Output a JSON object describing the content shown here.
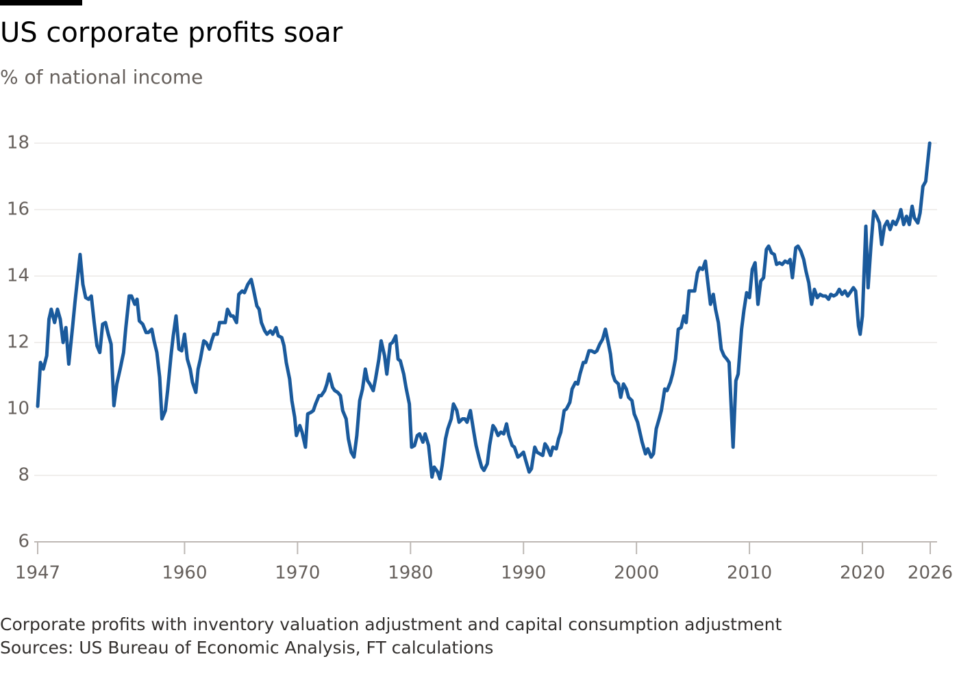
{
  "chart_data": {
    "type": "line",
    "title": "US corporate profits soar",
    "subtitle": "% of national income",
    "note": "Corporate profits with inventory valuation adjustment and capital consumption adjustment",
    "source": "Sources: US Bureau of Economic Analysis, FT calculations",
    "color": "#1a5a9c",
    "grid": true,
    "xlim": [
      1947,
      2026
    ],
    "xticks": [
      1947,
      1960,
      1970,
      1980,
      1990,
      2000,
      2010,
      2020,
      2026
    ],
    "ylim": [
      6,
      18
    ],
    "yticks": [
      6,
      8,
      10,
      12,
      14,
      16,
      18
    ],
    "x": [
      1947.0,
      1947.25,
      1947.5,
      1947.8,
      1948.0,
      1948.2,
      1948.5,
      1948.75,
      1949.0,
      1949.25,
      1949.5,
      1949.75,
      1950.1,
      1950.3,
      1950.75,
      1951.0,
      1951.25,
      1951.5,
      1951.75,
      1952.0,
      1952.25,
      1952.5,
      1952.75,
      1953.0,
      1953.25,
      1953.5,
      1953.75,
      1954.0,
      1954.3,
      1954.6,
      1954.8,
      1955.1,
      1955.3,
      1955.6,
      1955.8,
      1956.0,
      1956.3,
      1956.6,
      1956.8,
      1957.1,
      1957.3,
      1957.55,
      1957.8,
      1958.0,
      1958.3,
      1958.5,
      1958.8,
      1959.0,
      1959.25,
      1959.5,
      1959.75,
      1960.0,
      1960.25,
      1960.5,
      1960.7,
      1961.0,
      1961.2,
      1961.4,
      1961.7,
      1961.9,
      1962.2,
      1962.4,
      1962.6,
      1962.9,
      1963.1,
      1963.4,
      1963.6,
      1963.8,
      1964.1,
      1964.3,
      1964.6,
      1964.8,
      1965.1,
      1965.3,
      1965.6,
      1965.9,
      1966.1,
      1966.4,
      1966.6,
      1966.8,
      1967.1,
      1967.3,
      1967.6,
      1967.8,
      1968.1,
      1968.3,
      1968.6,
      1968.8,
      1969.0,
      1969.3,
      1969.5,
      1969.75,
      1969.9,
      1970.2,
      1970.4,
      1970.7,
      1970.9,
      1971.2,
      1971.4,
      1971.6,
      1971.9,
      1972.1,
      1972.4,
      1972.6,
      1972.8,
      1973.1,
      1973.3,
      1973.55,
      1973.8,
      1974.0,
      1974.3,
      1974.5,
      1974.75,
      1975.0,
      1975.25,
      1975.5,
      1975.75,
      1976.0,
      1976.2,
      1976.4,
      1976.7,
      1976.9,
      1977.2,
      1977.4,
      1977.7,
      1977.9,
      1978.2,
      1978.4,
      1978.7,
      1978.9,
      1979.1,
      1979.4,
      1979.6,
      1979.9,
      1980.1,
      1980.35,
      1980.6,
      1980.8,
      1981.1,
      1981.3,
      1981.6,
      1981.9,
      1982.1,
      1982.4,
      1982.6,
      1982.8,
      1983.1,
      1983.3,
      1983.6,
      1983.8,
      1984.1,
      1984.3,
      1984.6,
      1984.8,
      1985.0,
      1985.3,
      1985.6,
      1985.8,
      1986.05,
      1986.3,
      1986.5,
      1986.8,
      1987.0,
      1987.3,
      1987.5,
      1987.75,
      1988.0,
      1988.25,
      1988.5,
      1988.7,
      1989.0,
      1989.2,
      1989.5,
      1989.7,
      1990.0,
      1990.2,
      1990.5,
      1990.7,
      1991.0,
      1991.2,
      1991.45,
      1991.7,
      1991.9,
      1992.1,
      1992.4,
      1992.6,
      1992.9,
      1993.1,
      1993.3,
      1993.6,
      1993.8,
      1994.1,
      1994.3,
      1994.6,
      1994.8,
      1995.0,
      1995.3,
      1995.5,
      1995.8,
      1996.0,
      1996.3,
      1996.5,
      1996.75,
      1997.0,
      1997.25,
      1997.5,
      1997.7,
      1997.9,
      1998.1,
      1998.4,
      1998.6,
      1998.85,
      1999.1,
      1999.3,
      1999.6,
      1999.8,
      2000.1,
      2000.3,
      2000.5,
      2000.8,
      2001.0,
      2001.3,
      2001.5,
      2001.75,
      2002.0,
      2002.2,
      2002.5,
      2002.7,
      2003.0,
      2003.2,
      2003.45,
      2003.7,
      2003.95,
      2004.2,
      2004.4,
      2004.65,
      2004.9,
      2005.15,
      2005.4,
      2005.6,
      2005.85,
      2006.1,
      2006.3,
      2006.55,
      2006.8,
      2007.0,
      2007.25,
      2007.5,
      2007.75,
      2008.0,
      2008.2,
      2008.55,
      2008.8,
      2009.0,
      2009.3,
      2009.5,
      2009.75,
      2010.0,
      2010.25,
      2010.5,
      2010.75,
      2011.0,
      2011.25,
      2011.5,
      2011.7,
      2011.95,
      2012.2,
      2012.4,
      2012.65,
      2012.9,
      2013.15,
      2013.4,
      2013.6,
      2013.8,
      2014.1,
      2014.3,
      2014.55,
      2014.8,
      2015.0,
      2015.25,
      2015.5,
      2015.75,
      2016.0,
      2016.25,
      2016.5,
      2016.75,
      2017.0,
      2017.2,
      2017.45,
      2017.7,
      2017.95,
      2018.2,
      2018.45,
      2018.7,
      2018.9,
      2019.2,
      2019.4,
      2019.65,
      2019.8,
      2020.0,
      2020.3,
      2020.5,
      2020.75,
      2021.0,
      2021.25,
      2021.5,
      2021.7,
      2021.95,
      2022.2,
      2022.45,
      2022.7,
      2022.95,
      2023.2,
      2023.4,
      2023.65,
      2023.9,
      2024.15,
      2024.4,
      2024.6,
      2024.9,
      2025.1,
      2025.35,
      2025.6,
      2025.95
    ],
    "values": [
      10.08,
      11.4,
      11.2,
      11.6,
      12.7,
      13.0,
      12.6,
      13.0,
      12.7,
      12.0,
      12.45,
      11.35,
      12.5,
      13.2,
      14.65,
      13.75,
      13.35,
      13.3,
      13.4,
      12.6,
      11.9,
      11.7,
      12.55,
      12.6,
      12.25,
      11.95,
      10.1,
      10.75,
      11.2,
      11.7,
      12.45,
      13.4,
      13.4,
      13.15,
      13.3,
      12.65,
      12.55,
      12.3,
      12.3,
      12.4,
      12.05,
      11.7,
      10.95,
      9.7,
      9.95,
      10.55,
      11.6,
      12.2,
      12.8,
      11.8,
      11.75,
      12.25,
      11.5,
      11.2,
      10.8,
      10.5,
      11.2,
      11.5,
      12.05,
      12.0,
      11.8,
      12.05,
      12.25,
      12.25,
      12.6,
      12.6,
      12.6,
      13.0,
      12.8,
      12.8,
      12.6,
      13.45,
      13.55,
      13.5,
      13.75,
      13.9,
      13.6,
      13.1,
      13.0,
      12.6,
      12.35,
      12.25,
      12.35,
      12.25,
      12.45,
      12.2,
      12.15,
      11.9,
      11.4,
      10.9,
      10.25,
      9.75,
      9.2,
      9.5,
      9.3,
      8.85,
      9.85,
      9.9,
      9.95,
      10.15,
      10.4,
      10.4,
      10.55,
      10.75,
      11.05,
      10.65,
      10.55,
      10.5,
      10.4,
      9.95,
      9.7,
      9.1,
      8.7,
      8.55,
      9.2,
      10.25,
      10.6,
      11.2,
      10.85,
      10.75,
      10.55,
      10.9,
      11.5,
      12.05,
      11.6,
      11.05,
      11.95,
      12.0,
      12.2,
      11.5,
      11.45,
      11.05,
      10.65,
      10.15,
      8.85,
      8.9,
      9.2,
      9.25,
      9.0,
      9.25,
      8.9,
      7.95,
      8.25,
      8.1,
      7.9,
      8.3,
      9.1,
      9.4,
      9.7,
      10.15,
      9.95,
      9.6,
      9.7,
      9.7,
      9.6,
      9.95,
      9.3,
      8.9,
      8.55,
      8.25,
      8.15,
      8.35,
      8.9,
      9.5,
      9.4,
      9.2,
      9.3,
      9.25,
      9.55,
      9.2,
      8.9,
      8.85,
      8.55,
      8.6,
      8.7,
      8.45,
      8.1,
      8.2,
      8.85,
      8.7,
      8.65,
      8.6,
      8.95,
      8.85,
      8.6,
      8.85,
      8.8,
      9.1,
      9.3,
      9.95,
      10.0,
      10.2,
      10.6,
      10.8,
      10.75,
      11.05,
      11.4,
      11.4,
      11.75,
      11.75,
      11.7,
      11.75,
      11.95,
      12.1,
      12.4,
      12.0,
      11.65,
      11.05,
      10.85,
      10.75,
      10.35,
      10.75,
      10.6,
      10.35,
      10.25,
      9.85,
      9.6,
      9.3,
      9.0,
      8.65,
      8.8,
      8.55,
      8.65,
      9.4,
      9.7,
      9.95,
      10.6,
      10.55,
      10.8,
      11.05,
      11.5,
      12.4,
      12.45,
      12.8,
      12.6,
      13.55,
      13.55,
      13.55,
      14.1,
      14.25,
      14.2,
      14.45,
      13.85,
      13.15,
      13.45,
      13.0,
      12.6,
      11.8,
      11.6,
      11.5,
      11.4,
      8.85,
      10.85,
      11.05,
      12.4,
      12.95,
      13.5,
      13.35,
      14.2,
      14.4,
      13.15,
      13.85,
      13.95,
      14.8,
      14.9,
      14.7,
      14.65,
      14.35,
      14.4,
      14.35,
      14.45,
      14.4,
      14.5,
      13.95,
      14.85,
      14.9,
      14.75,
      14.5,
      14.15,
      13.8,
      13.15,
      13.6,
      13.35,
      13.45,
      13.4,
      13.4,
      13.3,
      13.45,
      13.4,
      13.45,
      13.6,
      13.45,
      13.55,
      13.4,
      13.5,
      13.65,
      13.55,
      12.5,
      12.25,
      12.8,
      15.5,
      13.65,
      14.9,
      15.95,
      15.8,
      15.6,
      14.95,
      15.5,
      15.65,
      15.4,
      15.65,
      15.55,
      15.75,
      16.0,
      15.55,
      15.8,
      15.55,
      16.1,
      15.75,
      15.6,
      15.9,
      16.7,
      16.85,
      18.0
    ]
  }
}
